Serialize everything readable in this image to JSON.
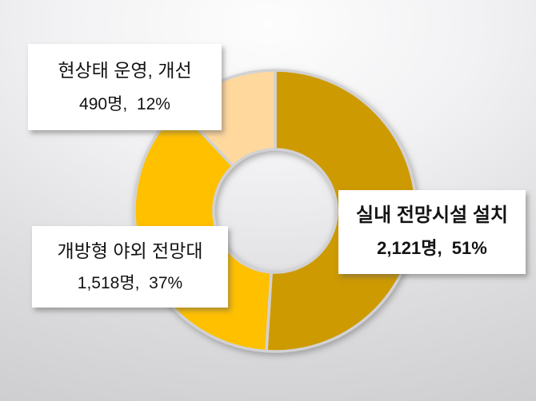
{
  "chart_data": {
    "type": "pie",
    "subtype": "donut",
    "title": "",
    "legend": "none",
    "direction": "clockwise",
    "start_angle_deg": 0,
    "hole_ratio": 0.44,
    "categories": [
      "실내 전망시설 설치",
      "개방형 야외 전망대",
      "현상태 운영, 개선"
    ],
    "values": [
      2121,
      1518,
      490
    ],
    "percents": [
      51,
      37,
      12
    ],
    "unit": "명",
    "slices": [
      {
        "label": "실내 전망시설 설치",
        "value": 2121,
        "percent": 51,
        "value_text": "2,121명,  51%",
        "color": "#CE9A02",
        "emphasis": "bold"
      },
      {
        "label": "개방형 야외 전망대",
        "value": 1518,
        "percent": 37,
        "value_text": "1,518명,  37%",
        "color": "#FFC000",
        "emphasis": "normal"
      },
      {
        "label": "현상태 운영, 개선",
        "value": 490,
        "percent": 12,
        "value_text": "490명,  12%",
        "color": "#FFD89E",
        "emphasis": "normal"
      }
    ],
    "colors": {
      "gap_stroke": "#d2d2d4",
      "background_edge": "#c9c9cb",
      "background_center": "#fdfdfd",
      "callout_background": "#ffffff",
      "text": "#131313"
    }
  }
}
